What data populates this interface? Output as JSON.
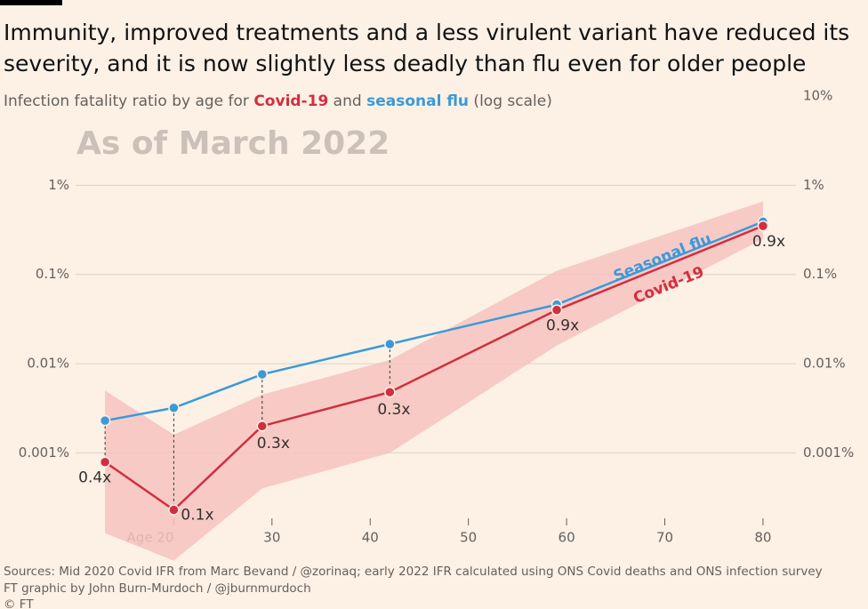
{
  "chart_data": {
    "type": "line",
    "title_lines": [
      "Immunity, improved treatments and a less virulent variant have reduced its",
      "severity, and it is now slightly less deadly than flu even for older people"
    ],
    "subtitle": [
      "Infection fatality ratio by age for ",
      "Covid-19",
      " and ",
      "seasonal flu",
      " (log scale)"
    ],
    "watermark": "As of March 2022",
    "x": [
      13,
      20,
      29,
      42,
      59,
      80
    ],
    "xlim": [
      10,
      82
    ],
    "xticks": [
      {
        "value": 20,
        "label": "Age 20"
      },
      30,
      40,
      50,
      60,
      70,
      80
    ],
    "log_scale": true,
    "ylim": [
      5e-05,
      10
    ],
    "yticks": [
      {
        "value": 1,
        "label": "1%"
      },
      {
        "value": 0.1,
        "label": "0.1%"
      },
      {
        "value": 0.01,
        "label": "0.01%"
      },
      {
        "value": 0.001,
        "label": "0.001%"
      }
    ],
    "y2lim": [
      5e-05,
      10
    ],
    "y2ticks": [
      {
        "value": 10,
        "label": "10%"
      },
      {
        "value": 1,
        "label": "1%"
      },
      {
        "value": 0.1,
        "label": "0.1%"
      },
      {
        "value": 0.01,
        "label": "0.01%"
      },
      {
        "value": 0.001,
        "label": "0.001%"
      }
    ],
    "grid": true,
    "band": {
      "color": "#f6c3bf",
      "lower": [
        0.000126,
        6.2e-05,
        0.0004,
        0.001,
        0.016,
        0.25
      ],
      "upper": [
        0.005,
        0.0016,
        0.0045,
        0.011,
        0.11,
        0.66
      ]
    },
    "series": [
      {
        "name": "Seasonal flu",
        "color": "#3a9ad9",
        "values": [
          0.0023,
          0.0032,
          0.0076,
          0.0166,
          0.046,
          0.39
        ]
      },
      {
        "name": "Covid-19",
        "color": "#d12f3f",
        "values": [
          0.00079,
          0.00023,
          0.002,
          0.0048,
          0.04,
          0.35
        ]
      }
    ],
    "ratio_labels": [
      "0.4x",
      "0.1x",
      "0.3x",
      "0.3x",
      "0.9x",
      "0.9x"
    ],
    "sources": "Sources: Mid 2020 Covid IFR from Marc Bevand / @zorinaq; early 2022 IFR calculated using ONS Covid deaths and ONS infection survey",
    "credit": "FT graphic by John Burn-Murdoch / @jburnmurdoch",
    "copyright": "© FT"
  }
}
